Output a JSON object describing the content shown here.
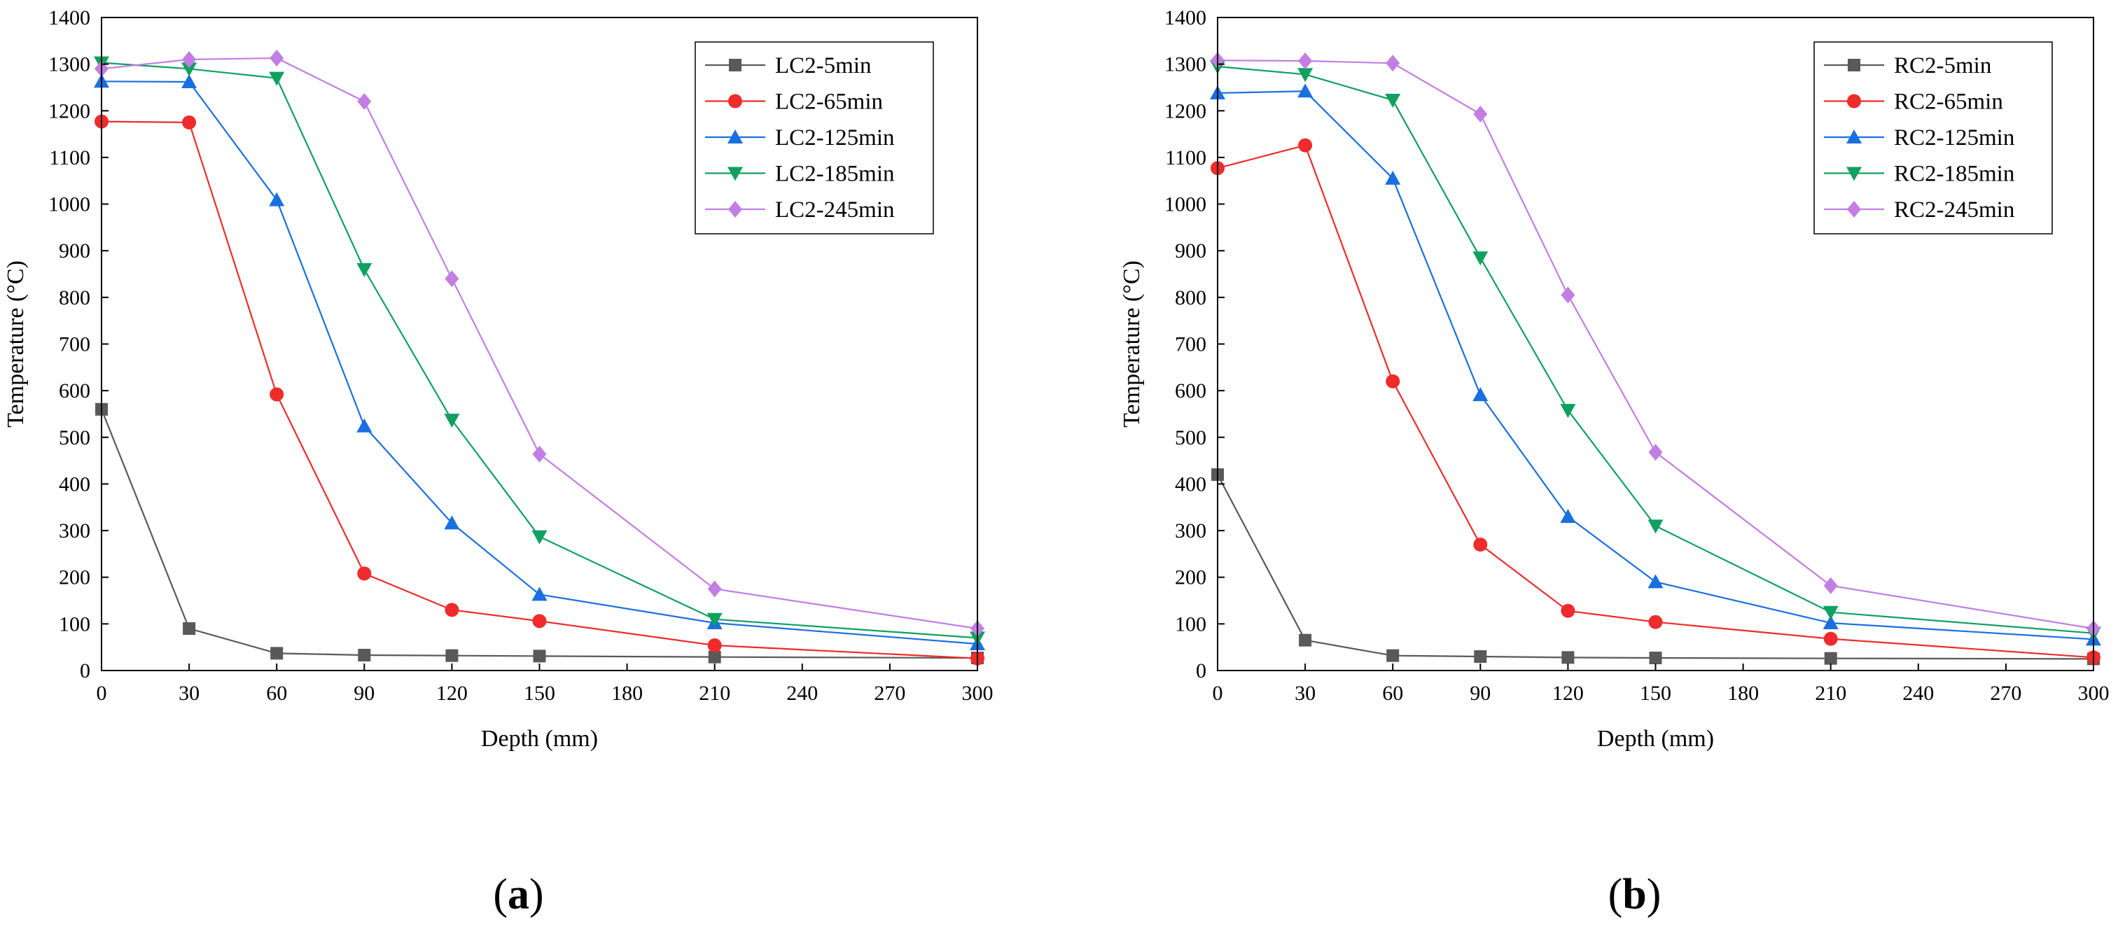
{
  "chart_data": [
    {
      "type": "line",
      "panel_label": {
        "open": "(",
        "letter": "a",
        "close": ")"
      },
      "xlabel": "Depth (mm)",
      "ylabel": "Temperature (°C)",
      "xlim": [
        0,
        300
      ],
      "ylim": [
        0,
        1400
      ],
      "xticks": [
        0,
        30,
        60,
        90,
        120,
        150,
        180,
        210,
        240,
        270,
        300
      ],
      "yticks": [
        0,
        100,
        200,
        300,
        400,
        500,
        600,
        700,
        800,
        900,
        1000,
        1100,
        1200,
        1300,
        1400
      ],
      "x": [
        0,
        30,
        60,
        90,
        120,
        150,
        210,
        300
      ],
      "legend_position": "top-right",
      "series": [
        {
          "name": "LC2-5min",
          "color": "#595959",
          "marker": "square",
          "values": [
            560,
            90,
            37,
            33,
            32,
            31,
            29,
            27
          ]
        },
        {
          "name": "LC2-65min",
          "color": "#ef2b2b",
          "marker": "circle",
          "values": [
            1177,
            1175,
            592,
            208,
            130,
            106,
            54,
            26
          ]
        },
        {
          "name": "LC2-125min",
          "color": "#1a6fdf",
          "marker": "triangle-up",
          "values": [
            1263,
            1262,
            1009,
            524,
            316,
            163,
            102,
            57
          ]
        },
        {
          "name": "LC2-185min",
          "color": "#10a060",
          "marker": "triangle-down",
          "values": [
            1303,
            1290,
            1270,
            860,
            537,
            287,
            110,
            70
          ]
        },
        {
          "name": "LC2-245min",
          "color": "#c27ee3",
          "marker": "diamond",
          "values": [
            1290,
            1310,
            1313,
            1220,
            840,
            464,
            175,
            90
          ]
        }
      ]
    },
    {
      "type": "line",
      "panel_label": {
        "open": "(",
        "letter": "b",
        "close": ")"
      },
      "xlabel": "Depth (mm)",
      "ylabel": "Temperature (°C)",
      "xlim": [
        0,
        300
      ],
      "ylim": [
        0,
        1400
      ],
      "xticks": [
        0,
        30,
        60,
        90,
        120,
        150,
        180,
        210,
        240,
        270,
        300
      ],
      "yticks": [
        0,
        100,
        200,
        300,
        400,
        500,
        600,
        700,
        800,
        900,
        1000,
        1100,
        1200,
        1300,
        1400
      ],
      "x": [
        0,
        30,
        60,
        90,
        120,
        150,
        210,
        300
      ],
      "legend_position": "top-right",
      "series": [
        {
          "name": "RC2-5min",
          "color": "#595959",
          "marker": "square",
          "values": [
            420,
            65,
            32,
            30,
            28,
            27,
            26,
            25
          ]
        },
        {
          "name": "RC2-65min",
          "color": "#ef2b2b",
          "marker": "circle",
          "values": [
            1077,
            1126,
            620,
            270,
            128,
            104,
            68,
            28
          ]
        },
        {
          "name": "RC2-125min",
          "color": "#1a6fdf",
          "marker": "triangle-up",
          "values": [
            1238,
            1242,
            1055,
            591,
            330,
            190,
            102,
            67
          ]
        },
        {
          "name": "RC2-185min",
          "color": "#10a060",
          "marker": "triangle-down",
          "values": [
            1295,
            1278,
            1223,
            885,
            558,
            310,
            125,
            80
          ]
        },
        {
          "name": "RC2-245min",
          "color": "#c27ee3",
          "marker": "diamond",
          "values": [
            1308,
            1307,
            1302,
            1193,
            805,
            468,
            182,
            90
          ]
        }
      ]
    }
  ]
}
